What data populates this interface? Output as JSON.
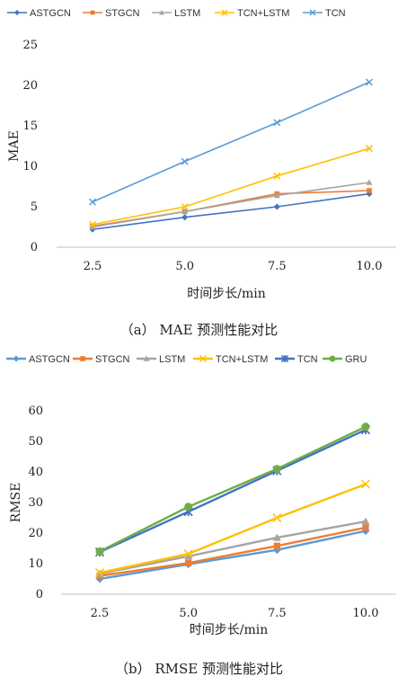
{
  "charts": [
    {
      "caption": "（a） MAE 预测性能对比",
      "chart_data": {
        "type": "line",
        "x": [
          2.5,
          5.0,
          7.5,
          10.0
        ],
        "x_tick_labels": [
          "2.5",
          "5.0",
          "7.5",
          "10.0"
        ],
        "xlabel": "时间步长/min",
        "ylabel": "MAE",
        "ylim": [
          0,
          25
        ],
        "y_ticks": [
          0,
          5,
          10,
          15,
          20,
          25
        ],
        "grid": false,
        "legend_position": "top",
        "series": [
          {
            "name": "ASTGCN",
            "color": "#4472C4",
            "marker": "diamond",
            "values": [
              2.2,
              3.7,
              5.0,
              6.6
            ]
          },
          {
            "name": "STGCN",
            "color": "#ED7D31",
            "marker": "square",
            "values": [
              2.6,
              4.4,
              6.6,
              7.0
            ]
          },
          {
            "name": "LSTM",
            "color": "#A5A5A5",
            "marker": "triangle",
            "values": [
              2.5,
              4.4,
              6.4,
              8.0
            ]
          },
          {
            "name": "TCN+LSTM",
            "color": "#FFC000",
            "marker": "x",
            "values": [
              2.8,
              5.0,
              8.8,
              12.2
            ]
          },
          {
            "name": "TCN",
            "color": "#5B9BD5",
            "marker": "x",
            "values": [
              5.6,
              10.6,
              15.4,
              20.4
            ]
          }
        ]
      }
    },
    {
      "caption": "（b） RMSE 预测性能对比",
      "chart_data": {
        "type": "line",
        "x": [
          2.5,
          5.0,
          7.5,
          10.0
        ],
        "x_tick_labels": [
          "2.5",
          "5.0",
          "7.5",
          "10.0"
        ],
        "xlabel": "时间步长/min",
        "ylabel": "RMSE",
        "ylim": [
          0,
          60
        ],
        "y_ticks": [
          0,
          10,
          20,
          30,
          40,
          50,
          60
        ],
        "grid": false,
        "legend_position": "top",
        "series": [
          {
            "name": "ASTGCN",
            "color": "#5B9BD5",
            "marker": "diamond",
            "values": [
              5.0,
              9.8,
              14.5,
              20.7
            ]
          },
          {
            "name": "STGCN",
            "color": "#ED7D31",
            "marker": "square",
            "values": [
              6.0,
              10.2,
              15.8,
              21.8
            ]
          },
          {
            "name": "LSTM",
            "color": "#A5A5A5",
            "marker": "triangle",
            "values": [
              6.7,
              12.4,
              18.5,
              23.8
            ]
          },
          {
            "name": "TCN+LSTM",
            "color": "#FFC000",
            "marker": "x",
            "values": [
              7.0,
              13.2,
              25.0,
              36.0
            ]
          },
          {
            "name": "TCN",
            "color": "#4472C4",
            "marker": "star",
            "values": [
              13.8,
              27.0,
              40.4,
              53.8
            ]
          },
          {
            "name": "GRU",
            "color": "#70AD47",
            "marker": "circle",
            "values": [
              14.0,
              28.6,
              41.0,
              54.8
            ]
          }
        ]
      }
    }
  ]
}
